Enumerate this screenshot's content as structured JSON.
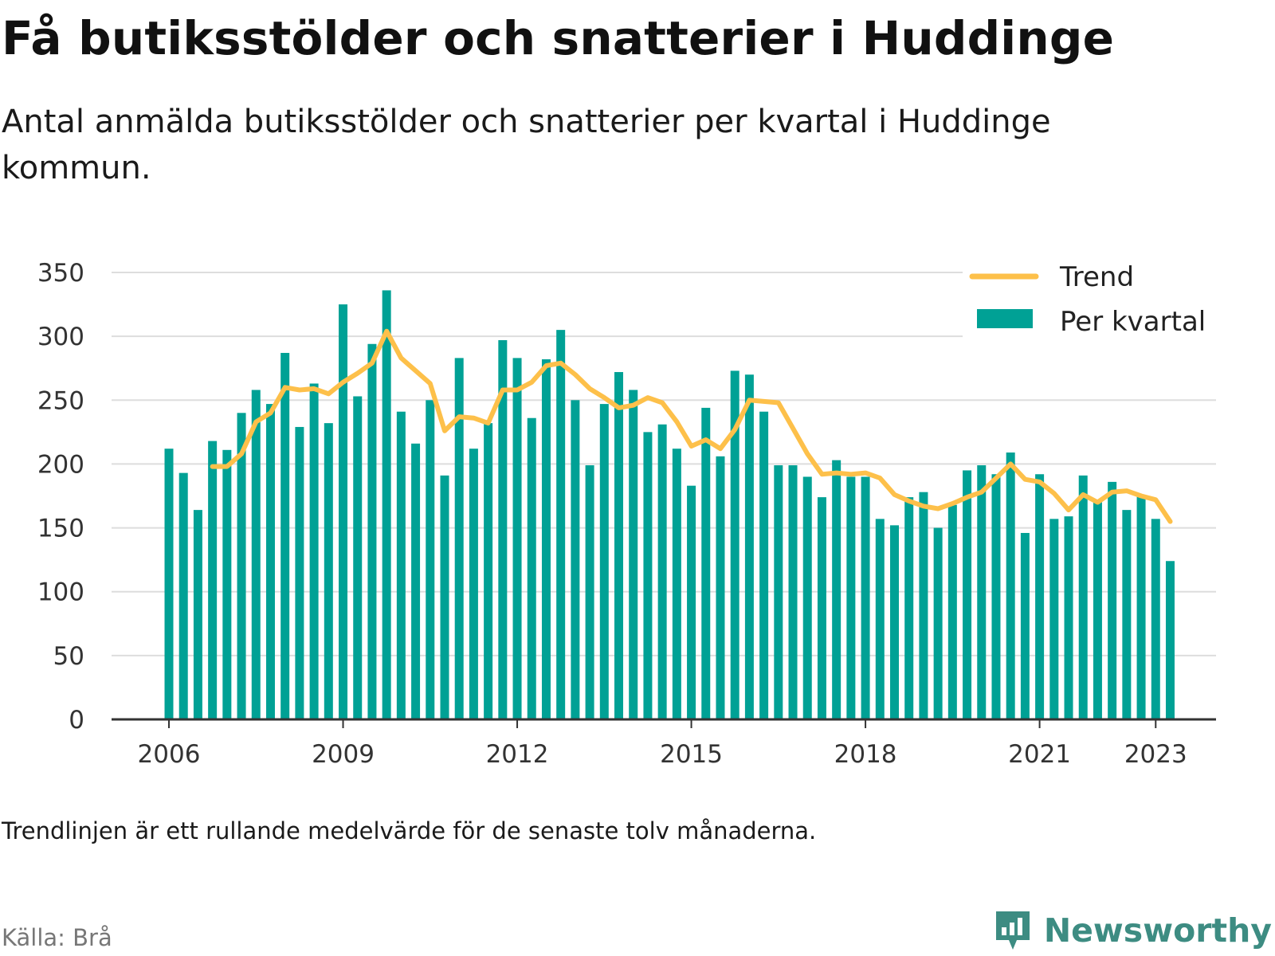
{
  "title": "Få butiksstölder och snatterier i Huddinge",
  "subtitle": "Antal anmälda butiksstölder och snatterier per kvartal i Huddinge kommun.",
  "note": "Trendlinjen är ett rullande medelvärde för de senaste tolv månaderna.",
  "source": "Källa: Brå",
  "brand": "Newsworthy",
  "colors": {
    "bar": "#00a195",
    "trend": "#fdc04a",
    "grid": "#dddddd",
    "axis": "#333333",
    "brand": "#3d8c82"
  },
  "chart_data": {
    "type": "bar",
    "title": "",
    "xlabel": "",
    "ylabel": "",
    "ylim": [
      0,
      350
    ],
    "yticks": [
      0,
      50,
      100,
      150,
      200,
      250,
      300,
      350
    ],
    "xticks": [
      "2006",
      "2009",
      "2012",
      "2015",
      "2018",
      "2021",
      "2023"
    ],
    "grid": true,
    "legend_position": "top-right",
    "legend": [
      "Trend",
      "Per kvartal"
    ],
    "categories": [
      "2006Q1",
      "2006Q2",
      "2006Q3",
      "2006Q4",
      "2007Q1",
      "2007Q2",
      "2007Q3",
      "2007Q4",
      "2008Q1",
      "2008Q2",
      "2008Q3",
      "2008Q4",
      "2009Q1",
      "2009Q2",
      "2009Q3",
      "2009Q4",
      "2010Q1",
      "2010Q2",
      "2010Q3",
      "2010Q4",
      "2011Q1",
      "2011Q2",
      "2011Q3",
      "2011Q4",
      "2012Q1",
      "2012Q2",
      "2012Q3",
      "2012Q4",
      "2013Q1",
      "2013Q2",
      "2013Q3",
      "2013Q4",
      "2014Q1",
      "2014Q2",
      "2014Q3",
      "2014Q4",
      "2015Q1",
      "2015Q2",
      "2015Q3",
      "2015Q4",
      "2016Q1",
      "2016Q2",
      "2016Q3",
      "2016Q4",
      "2017Q1",
      "2017Q2",
      "2017Q3",
      "2017Q4",
      "2018Q1",
      "2018Q2",
      "2018Q3",
      "2018Q4",
      "2019Q1",
      "2019Q2",
      "2019Q3",
      "2019Q4",
      "2020Q1",
      "2020Q2",
      "2020Q3",
      "2020Q4",
      "2021Q1",
      "2021Q2",
      "2021Q3",
      "2021Q4",
      "2022Q1",
      "2022Q2",
      "2022Q3",
      "2022Q4",
      "2023Q1",
      "2023Q2"
    ],
    "series": [
      {
        "name": "Per kvartal",
        "kind": "bar",
        "values": [
          212,
          193,
          164,
          218,
          211,
          240,
          258,
          247,
          287,
          229,
          263,
          232,
          325,
          253,
          294,
          336,
          241,
          216,
          250,
          191,
          283,
          212,
          232,
          297,
          283,
          236,
          282,
          305,
          250,
          199,
          247,
          272,
          258,
          225,
          231,
          212,
          183,
          244,
          206,
          273,
          270,
          241,
          199,
          199,
          190,
          174,
          203,
          190,
          190,
          157,
          152,
          174,
          178,
          150,
          168,
          195,
          199,
          192,
          209,
          146,
          192,
          157,
          159,
          191,
          170,
          186,
          164,
          175,
          157,
          124
        ]
      },
      {
        "name": "Trend",
        "kind": "line",
        "values": [
          null,
          null,
          null,
          198,
          198,
          208,
          233,
          240,
          260,
          258,
          259,
          255,
          264,
          271,
          279,
          304,
          283,
          273,
          263,
          226,
          237,
          236,
          232,
          258,
          258,
          264,
          277,
          279,
          270,
          259,
          252,
          244,
          246,
          252,
          248,
          233,
          214,
          219,
          212,
          227,
          250,
          249,
          248,
          228,
          208,
          192,
          193,
          192,
          193,
          189,
          176,
          171,
          167,
          165,
          169,
          174,
          178,
          189,
          200,
          188,
          186,
          177,
          164,
          176,
          170,
          178,
          179,
          175,
          172,
          155
        ]
      }
    ]
  }
}
